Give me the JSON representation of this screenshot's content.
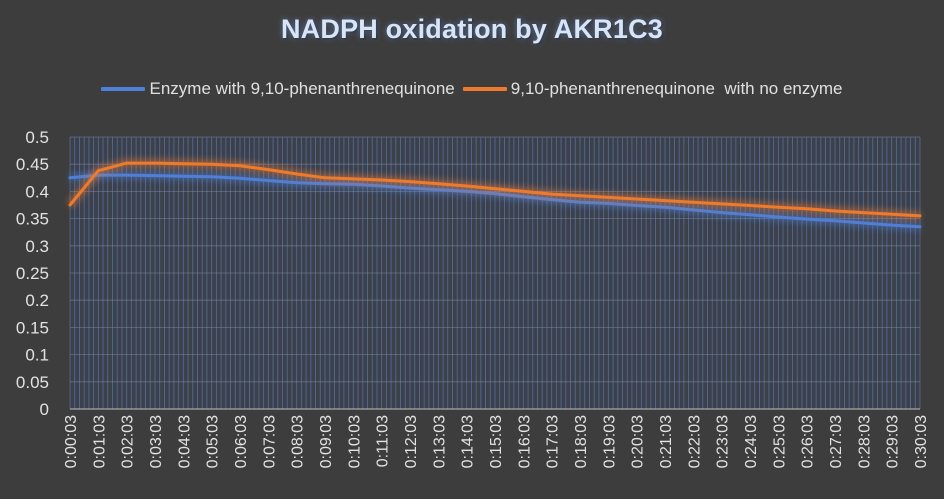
{
  "chart_data": {
    "type": "line",
    "title": "NADPH oxidation by AKR1C3",
    "xlabel": "",
    "ylabel": "",
    "ylim": [
      0,
      0.5
    ],
    "yticks": [
      0,
      0.05,
      0.1,
      0.15,
      0.2,
      0.25,
      0.3,
      0.35,
      0.4,
      0.45,
      0.5
    ],
    "ytick_labels": [
      "0",
      "0.05",
      "0.1",
      "0.15",
      "0.2",
      "0.25",
      "0.3",
      "0.35",
      "0.4",
      "0.45",
      "0.5"
    ],
    "grid": true,
    "legend_position": "top",
    "x": [
      "0:00:03",
      "0:01:03",
      "0:02:03",
      "0:03:03",
      "0:04:03",
      "0:05:03",
      "0:06:03",
      "0:07:03",
      "0:08:03",
      "0:09:03",
      "0:10:03",
      "0:11:03",
      "0:12:03",
      "0:13:03",
      "0:14:03",
      "0:15:03",
      "0:16:03",
      "0:17:03",
      "0:18:03",
      "0:19:03",
      "0:20:03",
      "0:21:03",
      "0:22:03",
      "0:23:03",
      "0:24:03",
      "0:25:03",
      "0:26:03",
      "0:27:03",
      "0:28:03",
      "0:29:03",
      "0:30:03"
    ],
    "series": [
      {
        "name": "Enzyme with 9,10-phenanthrenequinone",
        "color": "#4f7fd6",
        "values": [
          0.425,
          0.43,
          0.43,
          0.429,
          0.428,
          0.427,
          0.424,
          0.42,
          0.416,
          0.414,
          0.413,
          0.41,
          0.406,
          0.403,
          0.4,
          0.396,
          0.39,
          0.385,
          0.38,
          0.378,
          0.374,
          0.371,
          0.366,
          0.361,
          0.357,
          0.353,
          0.349,
          0.346,
          0.342,
          0.338,
          0.335
        ]
      },
      {
        "name": "9,10-phenanthrenequinone  with no enzyme",
        "color": "#f07a2b",
        "values": [
          0.375,
          0.438,
          0.452,
          0.452,
          0.451,
          0.45,
          0.447,
          0.44,
          0.432,
          0.425,
          0.423,
          0.421,
          0.418,
          0.414,
          0.41,
          0.405,
          0.4,
          0.395,
          0.392,
          0.389,
          0.386,
          0.383,
          0.38,
          0.377,
          0.374,
          0.371,
          0.368,
          0.364,
          0.361,
          0.358,
          0.355
        ]
      }
    ]
  }
}
